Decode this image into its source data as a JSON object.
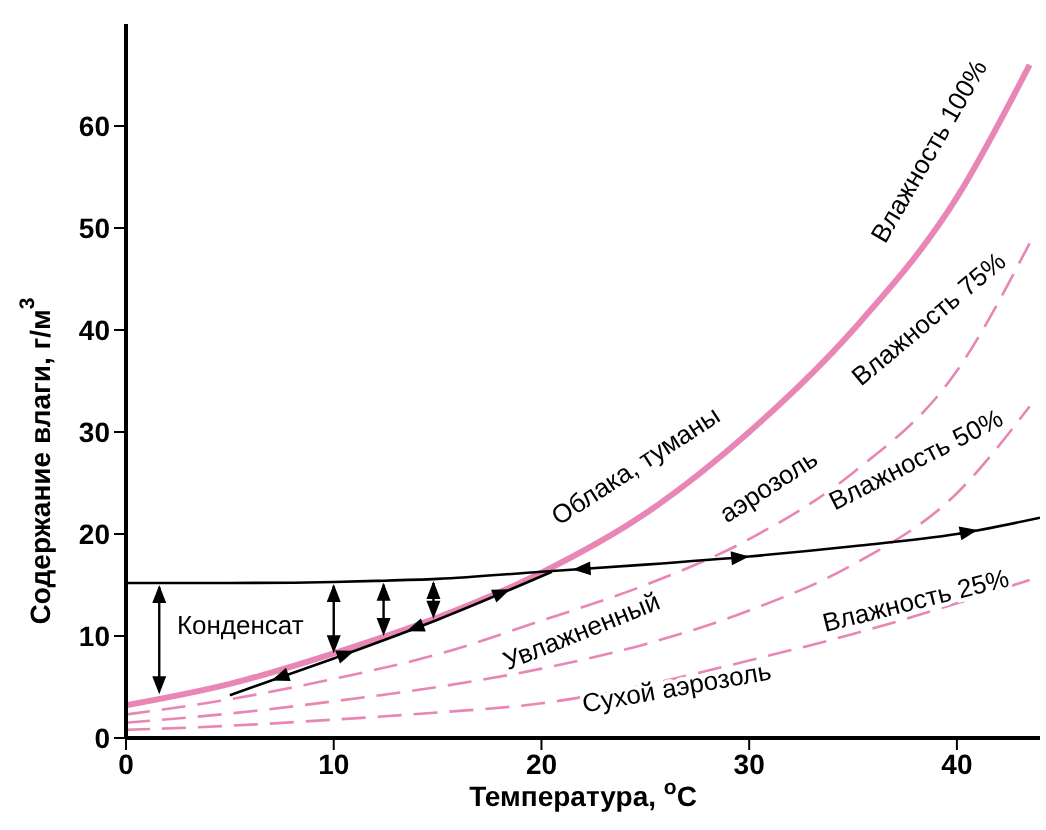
{
  "chart_data": {
    "type": "line",
    "xlabel": "Температура, $^{o}$C",
    "ylabel": "Содержание влаги, г/м$^{3}$",
    "xlim": [
      0,
      44
    ],
    "xticks": [
      0,
      10,
      20,
      30,
      40
    ],
    "ylim": [
      0,
      70
    ],
    "yticks": [
      0,
      10,
      20,
      30,
      40,
      50,
      60
    ],
    "marker": "none",
    "series": [
      {
        "color": "#e886b6",
        "line_style": "solid",
        "x": [
          0,
          5,
          10,
          15,
          20,
          25,
          30,
          35,
          40,
          43.5
        ],
        "values": [
          3.2,
          5.3,
          8.3,
          11.8,
          16.2,
          22,
          30,
          40,
          53,
          66
        ]
      },
      {
        "color": "#e886b6",
        "line_style": "dashed",
        "x": [
          0,
          5,
          10,
          15,
          20,
          25,
          30,
          35,
          40,
          43.5
        ],
        "values": [
          2.3,
          3.8,
          5.8,
          8.2,
          11.5,
          15,
          19.5,
          26,
          36,
          48.5
        ]
      },
      {
        "color": "#e886b6",
        "line_style": "dashed",
        "x": [
          0,
          5,
          10,
          15,
          20,
          25,
          30,
          35,
          40,
          43.5
        ],
        "values": [
          1.5,
          2.4,
          3.6,
          5,
          6.8,
          9.2,
          12.5,
          17,
          24,
          32.5
        ]
      },
      {
        "color": "#e886b6",
        "line_style": "dashed",
        "x": [
          0,
          5,
          10,
          15,
          20,
          25,
          30,
          35,
          40,
          43.5
        ],
        "values": [
          0.8,
          1.2,
          1.8,
          2.5,
          3.4,
          5.2,
          7.6,
          10.2,
          13.2,
          15.5
        ]
      },
      {
        "color": "#000000",
        "line_style": "solid",
        "x": [
          0,
          5,
          10,
          12,
          15,
          20,
          25,
          30,
          35,
          40,
          44
        ],
        "values": [
          15.2,
          15.2,
          15.3,
          15.4,
          15.6,
          16.3,
          17,
          17.8,
          18.8,
          20,
          21.6
        ]
      },
      {
        "color": "#000000",
        "line_style": "solid",
        "x": [
          5,
          10,
          15,
          20.5
        ],
        "values": [
          4.2,
          7.8,
          11.6,
          16.3
        ]
      }
    ],
    "annotations": [
      {
        "text": "Конденсат",
        "x": 1.6,
        "y": 15.2
      },
      "Облака, туманы",
      "Влажность 100%",
      "Влажность 75%",
      "аэрозоль",
      "Увлажненный",
      "Влажность 50%",
      "Влажность 25%",
      "Сухой аэрозоль"
    ]
  }
}
